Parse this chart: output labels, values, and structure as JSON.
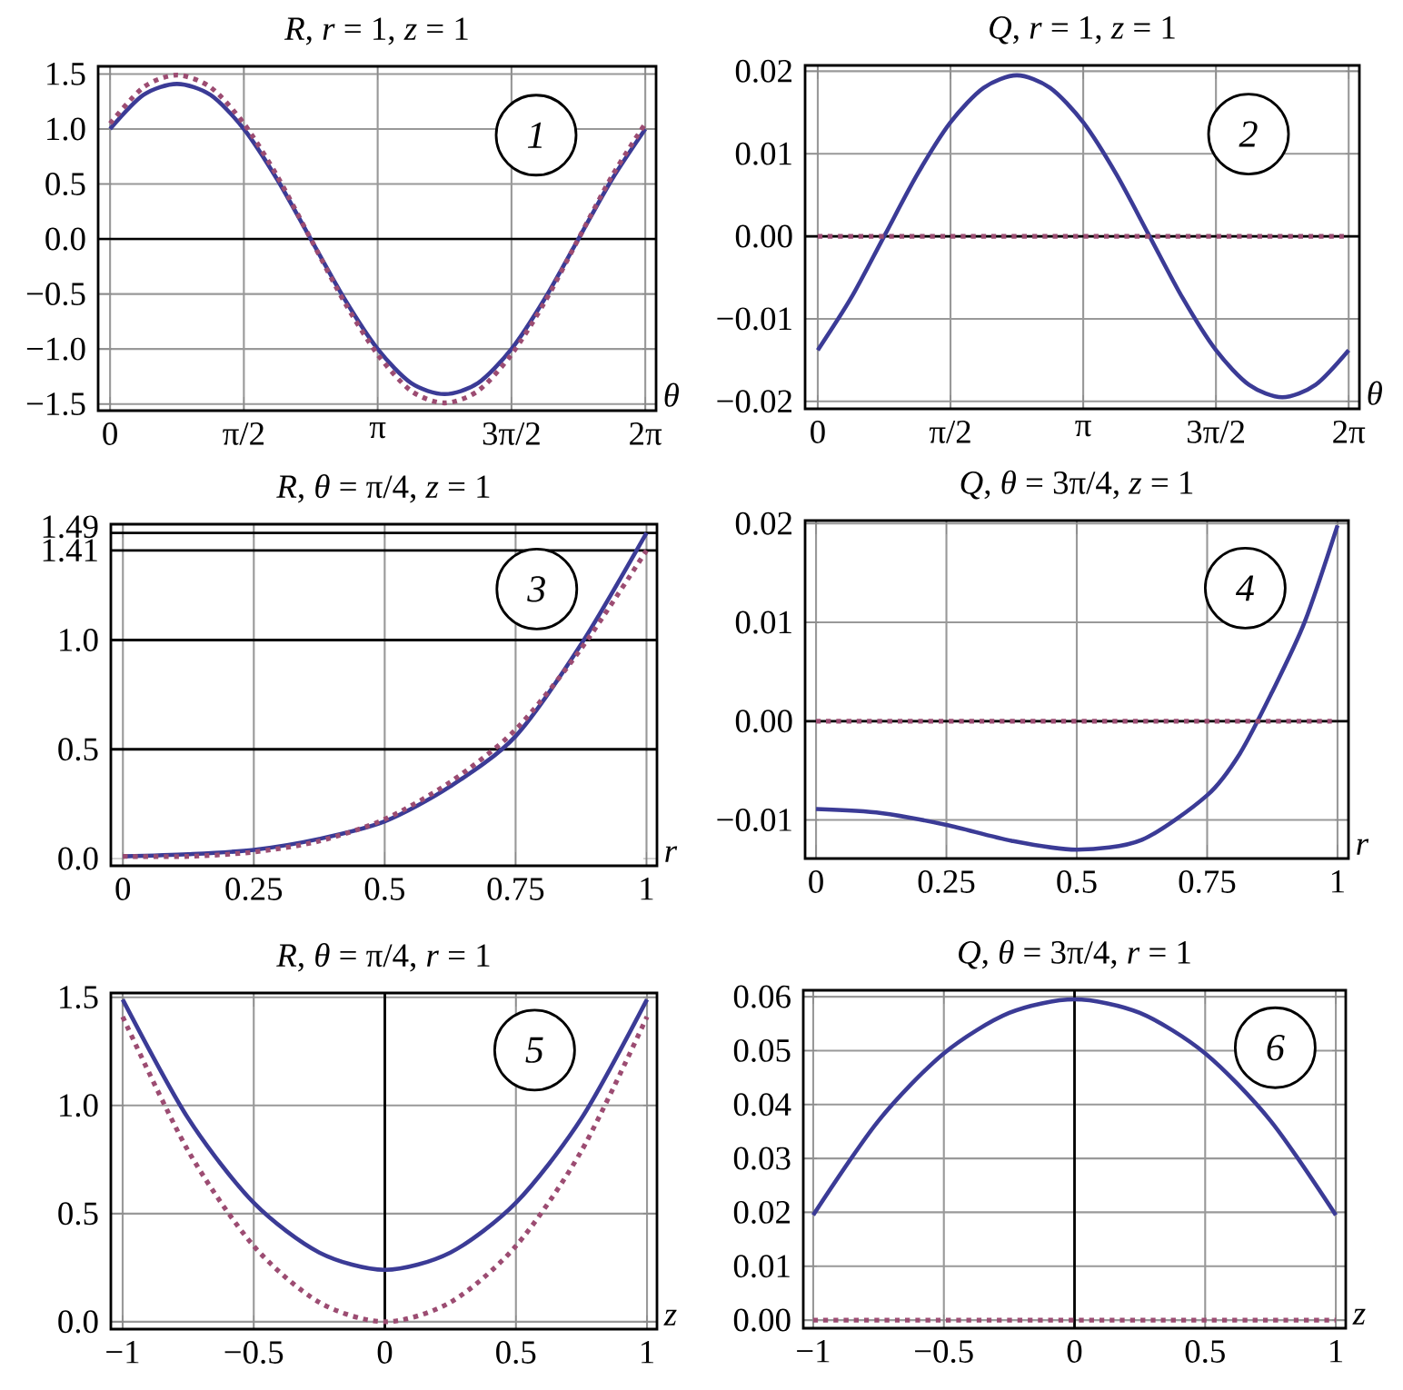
{
  "chart_data": [
    {
      "type": "line",
      "title": "*R*, *r* = 1, *z* = 1",
      "xlabel": "θ",
      "annotations": [
        "1"
      ],
      "grid": true,
      "xlim": [
        -0.14,
        6.41
      ],
      "ylim": [
        -1.56,
        1.57
      ],
      "xticks": [
        0,
        {
          "value": 1.5708,
          "label": "π/2"
        },
        {
          "value": 3.1416,
          "label": "π"
        },
        {
          "value": 4.7124,
          "label": "3π/2"
        },
        {
          "value": 6.2832,
          "label": "2π"
        }
      ],
      "yticks": [
        1.5,
        {
          "value": 1,
          "label": "1.0"
        },
        0.5,
        {
          "value": 0,
          "label": "0.0"
        },
        {
          "value": -0.5,
          "label": "−0.5"
        },
        {
          "value": -1,
          "label": "−1.0"
        },
        {
          "value": -1.5,
          "label": "−1.5"
        }
      ],
      "ref_lines": [
        {
          "axis": "y",
          "value": 0,
          "color": "#000000"
        }
      ],
      "series": [
        {
          "color": "#3b3b96",
          "line_style": "solid",
          "x": [
            0,
            0.3927,
            0.7854,
            1.1781,
            1.5708,
            1.9635,
            2.3562,
            2.7489,
            3.1416,
            3.5343,
            3.927,
            4.3197,
            4.7124,
            5.1051,
            5.4978,
            5.8905,
            6.2832
          ],
          "values": [
            1.0,
            1.31,
            1.41,
            1.31,
            1.0,
            0.54,
            0,
            -0.54,
            -1.0,
            -1.31,
            -1.41,
            -1.31,
            -1.0,
            -0.54,
            0,
            0.54,
            1.0
          ]
        },
        {
          "color": "#9c4c72",
          "line_style": "dotted",
          "x": [
            0,
            0.3927,
            0.7854,
            1.1781,
            1.5708,
            1.9635,
            2.3562,
            2.7489,
            3.1416,
            3.5343,
            3.927,
            4.3197,
            4.7124,
            5.1051,
            5.4978,
            5.8905,
            6.2832
          ],
          "values": [
            1.05,
            1.38,
            1.49,
            1.38,
            1.05,
            0.57,
            0,
            -0.57,
            -1.05,
            -1.38,
            -1.49,
            -1.38,
            -1.05,
            -0.57,
            0,
            0.57,
            1.05
          ]
        }
      ]
    },
    {
      "type": "line",
      "title": "*Q*, *r* = 1, *z* = 1",
      "xlabel": "θ",
      "annotations": [
        "2"
      ],
      "grid": true,
      "xlim": [
        -0.15,
        6.41
      ],
      "ylim": [
        -0.0209,
        0.0207
      ],
      "xticks": [
        0,
        {
          "value": 1.5708,
          "label": "π/2"
        },
        {
          "value": 3.1416,
          "label": "π"
        },
        {
          "value": 4.7124,
          "label": "3π/2"
        },
        {
          "value": 6.2832,
          "label": "2π"
        }
      ],
      "yticks": [
        0.02,
        0.01,
        {
          "value": 0,
          "label": "0.00"
        },
        {
          "value": -0.01,
          "label": "−0.01"
        },
        {
          "value": -0.02,
          "label": "−0.02"
        }
      ],
      "ref_lines": [
        {
          "axis": "y",
          "value": 0,
          "color": "#000000"
        }
      ],
      "series": [
        {
          "color": "#3b3b96",
          "line_style": "solid",
          "x": [
            0,
            0.3927,
            0.7854,
            1.1781,
            1.5708,
            1.9635,
            2.3562,
            2.7489,
            3.1416,
            3.5343,
            3.927,
            4.3197,
            4.7124,
            5.1051,
            5.4978,
            5.8905,
            6.2832
          ],
          "values": [
            -0.0138,
            -0.0075,
            0,
            0.0075,
            0.0138,
            0.018,
            0.0195,
            0.018,
            0.0138,
            0.0075,
            0,
            -0.0075,
            -0.0138,
            -0.018,
            -0.0195,
            -0.018,
            -0.0138
          ]
        },
        {
          "color": "#9c4c72",
          "line_style": "dotted",
          "x": [
            0,
            6.2832
          ],
          "values": [
            0,
            0
          ]
        }
      ]
    },
    {
      "type": "line",
      "title": "*R*, *θ* = π/4, *z* = 1",
      "xlabel": "r",
      "annotations": [
        "3"
      ],
      "grid": "x",
      "xlim": [
        -0.023,
        1.02
      ],
      "ylim": [
        -0.033,
        1.53
      ],
      "xticks": [
        0,
        0.25,
        0.5,
        0.75,
        1
      ],
      "yticks": [
        {
          "value": 0,
          "label": "0.0"
        },
        0.5,
        {
          "value": 1,
          "label": "1.0"
        },
        1.41,
        1.49
      ],
      "ref_lines": [
        {
          "axis": "y",
          "value": 0.5,
          "color": "#000000"
        },
        {
          "axis": "y",
          "value": 1,
          "color": "#000000"
        },
        {
          "axis": "y",
          "value": 1.41,
          "color": "#000000"
        },
        {
          "axis": "y",
          "value": 1.49,
          "color": "#000000"
        }
      ],
      "series": [
        {
          "color": "#3b3b96",
          "line_style": "solid",
          "x": [
            0,
            0.125,
            0.25,
            0.375,
            0.5,
            0.625,
            0.75,
            0.875,
            1
          ],
          "values": [
            0.01,
            0.02,
            0.04,
            0.09,
            0.17,
            0.33,
            0.56,
            0.98,
            1.49
          ]
        },
        {
          "color": "#9c4c72",
          "line_style": "dotted",
          "x": [
            0,
            0.125,
            0.25,
            0.375,
            0.5,
            0.625,
            0.75,
            0.875,
            1
          ],
          "values": [
            0.01,
            0.01,
            0.03,
            0.08,
            0.18,
            0.35,
            0.59,
            0.96,
            1.41
          ]
        }
      ]
    },
    {
      "type": "line",
      "title": "*Q*, *θ* = 3π/4, *z* = 1",
      "xlabel": "r",
      "annotations": [
        "4"
      ],
      "grid": true,
      "xlim": [
        -0.021,
        1.021
      ],
      "ylim": [
        -0.0139,
        0.0203
      ],
      "xticks": [
        0,
        0.25,
        0.5,
        0.75,
        1
      ],
      "yticks": [
        0.02,
        0.01,
        {
          "value": 0,
          "label": "0.00"
        },
        {
          "value": -0.01,
          "label": "−0.01"
        }
      ],
      "ref_lines": [
        {
          "axis": "y",
          "value": 0,
          "color": "#000000"
        }
      ],
      "series": [
        {
          "color": "#3b3b96",
          "line_style": "solid",
          "x": [
            0,
            0.125,
            0.25,
            0.375,
            0.5,
            0.625,
            0.75,
            0.8125,
            0.875,
            0.9375,
            1
          ],
          "values": [
            -0.0089,
            -0.0093,
            -0.0105,
            -0.0121,
            -0.013,
            -0.012,
            -0.0075,
            -0.0033,
            0.003,
            0.0101,
            0.0198
          ]
        },
        {
          "color": "#9c4c72",
          "line_style": "dotted",
          "x": [
            0,
            1
          ],
          "values": [
            0,
            0
          ]
        }
      ]
    },
    {
      "type": "line",
      "title": "*R*, *θ* = π/4, *r* = 1",
      "xlabel": "z",
      "annotations": [
        "5"
      ],
      "grid": true,
      "xlim": [
        -1.045,
        1.038
      ],
      "ylim": [
        -0.034,
        1.52
      ],
      "xticks": [
        {
          "value": -1,
          "label": "−1"
        },
        {
          "value": -0.5,
          "label": "−0.5"
        },
        0,
        0.5,
        1
      ],
      "yticks": [
        {
          "value": 0,
          "label": "0.0"
        },
        0.5,
        {
          "value": 1,
          "label": "1.0"
        },
        1.5
      ],
      "ref_lines": [
        {
          "axis": "x",
          "value": 0,
          "color": "#000000"
        }
      ],
      "series": [
        {
          "color": "#3b3b96",
          "line_style": "solid",
          "x": [
            -1,
            -0.75,
            -0.5,
            -0.25,
            0,
            0.25,
            0.5,
            0.75,
            1
          ],
          "values": [
            1.49,
            0.94,
            0.55,
            0.32,
            0.24,
            0.32,
            0.55,
            0.94,
            1.49
          ]
        },
        {
          "color": "#9c4c72",
          "line_style": "dotted",
          "x": [
            -1,
            -0.75,
            -0.5,
            -0.25,
            0,
            0.25,
            0.5,
            0.75,
            1
          ],
          "values": [
            1.41,
            0.79,
            0.35,
            0.09,
            0,
            0.09,
            0.35,
            0.79,
            1.41
          ]
        }
      ]
    },
    {
      "type": "line",
      "title": "*Q*, *θ* = 3π/4, *r* = 1",
      "xlabel": "z",
      "annotations": [
        "6"
      ],
      "grid": true,
      "xlim": [
        -1.038,
        1.038
      ],
      "ylim": [
        -0.0015,
        0.0612
      ],
      "xticks": [
        {
          "value": -1,
          "label": "−1"
        },
        {
          "value": -0.5,
          "label": "−0.5"
        },
        0,
        0.5,
        1
      ],
      "yticks": [
        {
          "value": 0,
          "label": "0.00"
        },
        0.01,
        0.02,
        0.03,
        0.04,
        0.05,
        0.06
      ],
      "ref_lines": [
        {
          "axis": "x",
          "value": 0,
          "color": "#000000"
        }
      ],
      "series": [
        {
          "color": "#3b3b96",
          "line_style": "solid",
          "x": [
            -1,
            -0.75,
            -0.5,
            -0.25,
            0,
            0.25,
            0.5,
            0.75,
            1
          ],
          "values": [
            0.0195,
            0.037,
            0.0495,
            0.057,
            0.0595,
            0.057,
            0.0495,
            0.037,
            0.0195
          ]
        },
        {
          "color": "#9c4c72",
          "line_style": "dotted",
          "x": [
            -1,
            1
          ],
          "values": [
            0,
            0
          ]
        }
      ]
    }
  ]
}
